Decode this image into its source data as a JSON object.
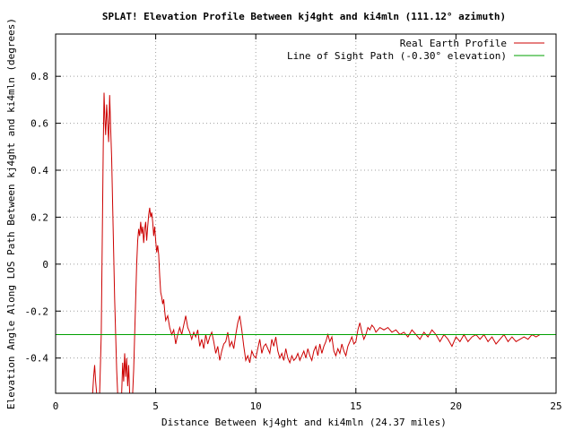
{
  "chart_data": {
    "type": "line",
    "title": "SPLAT! Elevation Profile Between kj4ght and ki4mln (111.12° azimuth)",
    "xlabel": "Distance Between kj4ght and ki4mln (24.37 miles)",
    "ylabel": "Elevation Angle Along LOS Path Between kj4ght and ki4mln (degrees)",
    "xlim": [
      0,
      25
    ],
    "ylim": [
      -0.55,
      0.98
    ],
    "x_ticks": [
      0,
      5,
      10,
      15,
      20,
      25
    ],
    "x_tick_labels": [
      "0",
      "5",
      "10",
      "15",
      "20",
      "25"
    ],
    "y_ticks": [
      -0.4,
      -0.2,
      0,
      0.2,
      0.4,
      0.6,
      0.8
    ],
    "y_tick_labels": [
      "-0.4",
      "-0.2",
      "0",
      "0.2",
      "0.4",
      "0.6",
      "0.8"
    ],
    "grid": true,
    "legend_position": "top-right",
    "series": [
      {
        "name": "Real Earth Profile",
        "color": "#cc0000",
        "points": [
          [
            1.85,
            -0.55
          ],
          [
            1.9,
            -0.48
          ],
          [
            1.95,
            -0.43
          ],
          [
            2.0,
            -0.5
          ],
          [
            2.05,
            -0.55
          ],
          [
            2.2,
            -0.55
          ],
          [
            2.28,
            -0.3
          ],
          [
            2.33,
            0.1
          ],
          [
            2.38,
            0.5
          ],
          [
            2.42,
            0.73
          ],
          [
            2.46,
            0.62
          ],
          [
            2.5,
            0.55
          ],
          [
            2.55,
            0.68
          ],
          [
            2.6,
            0.6
          ],
          [
            2.65,
            0.52
          ],
          [
            2.7,
            0.72
          ],
          [
            2.75,
            0.58
          ],
          [
            2.8,
            0.45
          ],
          [
            2.85,
            0.25
          ],
          [
            2.9,
            0.05
          ],
          [
            2.95,
            -0.15
          ],
          [
            3.0,
            -0.3
          ],
          [
            3.05,
            -0.45
          ],
          [
            3.1,
            -0.55
          ],
          [
            3.3,
            -0.55
          ],
          [
            3.35,
            -0.42
          ],
          [
            3.4,
            -0.5
          ],
          [
            3.45,
            -0.38
          ],
          [
            3.5,
            -0.48
          ],
          [
            3.55,
            -0.4
          ],
          [
            3.6,
            -0.52
          ],
          [
            3.65,
            -0.43
          ],
          [
            3.7,
            -0.55
          ],
          [
            3.85,
            -0.55
          ],
          [
            3.9,
            -0.45
          ],
          [
            3.95,
            -0.3
          ],
          [
            4.0,
            -0.15
          ],
          [
            4.05,
            0.0
          ],
          [
            4.1,
            0.1
          ],
          [
            4.15,
            0.15
          ],
          [
            4.2,
            0.12
          ],
          [
            4.25,
            0.18
          ],
          [
            4.3,
            0.13
          ],
          [
            4.35,
            0.16
          ],
          [
            4.4,
            0.09
          ],
          [
            4.45,
            0.15
          ],
          [
            4.5,
            0.18
          ],
          [
            4.55,
            0.1
          ],
          [
            4.6,
            0.16
          ],
          [
            4.65,
            0.21
          ],
          [
            4.7,
            0.24
          ],
          [
            4.75,
            0.2
          ],
          [
            4.8,
            0.22
          ],
          [
            4.85,
            0.18
          ],
          [
            4.9,
            0.12
          ],
          [
            4.95,
            0.16
          ],
          [
            5.0,
            0.1
          ],
          [
            5.05,
            0.05
          ],
          [
            5.1,
            0.08
          ],
          [
            5.15,
            0.04
          ],
          [
            5.2,
            -0.05
          ],
          [
            5.25,
            -0.12
          ],
          [
            5.3,
            -0.14
          ],
          [
            5.35,
            -0.17
          ],
          [
            5.4,
            -0.15
          ],
          [
            5.45,
            -0.2
          ],
          [
            5.5,
            -0.24
          ],
          [
            5.6,
            -0.22
          ],
          [
            5.7,
            -0.27
          ],
          [
            5.8,
            -0.3
          ],
          [
            5.9,
            -0.28
          ],
          [
            6.0,
            -0.34
          ],
          [
            6.1,
            -0.3
          ],
          [
            6.2,
            -0.27
          ],
          [
            6.3,
            -0.3
          ],
          [
            6.4,
            -0.26
          ],
          [
            6.5,
            -0.22
          ],
          [
            6.6,
            -0.27
          ],
          [
            6.7,
            -0.29
          ],
          [
            6.8,
            -0.32
          ],
          [
            6.9,
            -0.29
          ],
          [
            7.0,
            -0.31
          ],
          [
            7.1,
            -0.28
          ],
          [
            7.2,
            -0.35
          ],
          [
            7.3,
            -0.32
          ],
          [
            7.4,
            -0.36
          ],
          [
            7.5,
            -0.3
          ],
          [
            7.6,
            -0.34
          ],
          [
            7.7,
            -0.31
          ],
          [
            7.8,
            -0.29
          ],
          [
            7.9,
            -0.33
          ],
          [
            8.0,
            -0.38
          ],
          [
            8.1,
            -0.35
          ],
          [
            8.2,
            -0.41
          ],
          [
            8.3,
            -0.37
          ],
          [
            8.4,
            -0.34
          ],
          [
            8.5,
            -0.33
          ],
          [
            8.6,
            -0.29
          ],
          [
            8.7,
            -0.35
          ],
          [
            8.8,
            -0.33
          ],
          [
            8.9,
            -0.36
          ],
          [
            9.0,
            -0.3
          ],
          [
            9.1,
            -0.25
          ],
          [
            9.2,
            -0.22
          ],
          [
            9.3,
            -0.28
          ],
          [
            9.4,
            -0.35
          ],
          [
            9.5,
            -0.41
          ],
          [
            9.6,
            -0.39
          ],
          [
            9.7,
            -0.42
          ],
          [
            9.8,
            -0.37
          ],
          [
            9.9,
            -0.39
          ],
          [
            10.0,
            -0.4
          ],
          [
            10.1,
            -0.36
          ],
          [
            10.2,
            -0.32
          ],
          [
            10.3,
            -0.38
          ],
          [
            10.4,
            -0.35
          ],
          [
            10.5,
            -0.34
          ],
          [
            10.6,
            -0.36
          ],
          [
            10.7,
            -0.38
          ],
          [
            10.8,
            -0.32
          ],
          [
            10.9,
            -0.35
          ],
          [
            11.0,
            -0.31
          ],
          [
            11.1,
            -0.37
          ],
          [
            11.2,
            -0.4
          ],
          [
            11.3,
            -0.38
          ],
          [
            11.4,
            -0.41
          ],
          [
            11.5,
            -0.36
          ],
          [
            11.6,
            -0.4
          ],
          [
            11.7,
            -0.42
          ],
          [
            11.8,
            -0.39
          ],
          [
            11.9,
            -0.41
          ],
          [
            12.0,
            -0.4
          ],
          [
            12.1,
            -0.38
          ],
          [
            12.2,
            -0.41
          ],
          [
            12.3,
            -0.39
          ],
          [
            12.4,
            -0.37
          ],
          [
            12.5,
            -0.4
          ],
          [
            12.6,
            -0.36
          ],
          [
            12.7,
            -0.39
          ],
          [
            12.8,
            -0.41
          ],
          [
            12.9,
            -0.37
          ],
          [
            13.0,
            -0.35
          ],
          [
            13.1,
            -0.39
          ],
          [
            13.2,
            -0.34
          ],
          [
            13.3,
            -0.38
          ],
          [
            13.4,
            -0.35
          ],
          [
            13.5,
            -0.33
          ],
          [
            13.6,
            -0.3
          ],
          [
            13.7,
            -0.33
          ],
          [
            13.8,
            -0.31
          ],
          [
            13.9,
            -0.37
          ],
          [
            14.0,
            -0.39
          ],
          [
            14.1,
            -0.36
          ],
          [
            14.2,
            -0.38
          ],
          [
            14.3,
            -0.34
          ],
          [
            14.4,
            -0.37
          ],
          [
            14.5,
            -0.39
          ],
          [
            14.6,
            -0.35
          ],
          [
            14.7,
            -0.33
          ],
          [
            14.8,
            -0.31
          ],
          [
            14.9,
            -0.34
          ],
          [
            15.0,
            -0.33
          ],
          [
            15.1,
            -0.28
          ],
          [
            15.2,
            -0.25
          ],
          [
            15.3,
            -0.29
          ],
          [
            15.4,
            -0.32
          ],
          [
            15.5,
            -0.3
          ],
          [
            15.6,
            -0.27
          ],
          [
            15.7,
            -0.28
          ],
          [
            15.8,
            -0.26
          ],
          [
            15.9,
            -0.27
          ],
          [
            16.0,
            -0.29
          ],
          [
            16.2,
            -0.27
          ],
          [
            16.4,
            -0.28
          ],
          [
            16.6,
            -0.27
          ],
          [
            16.8,
            -0.29
          ],
          [
            17.0,
            -0.28
          ],
          [
            17.2,
            -0.3
          ],
          [
            17.4,
            -0.29
          ],
          [
            17.6,
            -0.31
          ],
          [
            17.8,
            -0.28
          ],
          [
            18.0,
            -0.3
          ],
          [
            18.2,
            -0.32
          ],
          [
            18.4,
            -0.29
          ],
          [
            18.6,
            -0.31
          ],
          [
            18.8,
            -0.28
          ],
          [
            19.0,
            -0.3
          ],
          [
            19.2,
            -0.33
          ],
          [
            19.4,
            -0.3
          ],
          [
            19.6,
            -0.32
          ],
          [
            19.8,
            -0.35
          ],
          [
            20.0,
            -0.31
          ],
          [
            20.2,
            -0.33
          ],
          [
            20.4,
            -0.3
          ],
          [
            20.6,
            -0.33
          ],
          [
            20.8,
            -0.31
          ],
          [
            21.0,
            -0.3
          ],
          [
            21.2,
            -0.32
          ],
          [
            21.4,
            -0.3
          ],
          [
            21.6,
            -0.33
          ],
          [
            21.8,
            -0.31
          ],
          [
            22.0,
            -0.34
          ],
          [
            22.2,
            -0.32
          ],
          [
            22.4,
            -0.3
          ],
          [
            22.6,
            -0.33
          ],
          [
            22.8,
            -0.31
          ],
          [
            23.0,
            -0.33
          ],
          [
            23.2,
            -0.32
          ],
          [
            23.4,
            -0.31
          ],
          [
            23.6,
            -0.32
          ],
          [
            23.8,
            -0.3
          ],
          [
            24.0,
            -0.31
          ],
          [
            24.2,
            -0.3
          ],
          [
            24.37,
            -0.3
          ]
        ]
      },
      {
        "name": "Line of Sight Path (-0.30° elevation)",
        "color": "#00a000",
        "points": [
          [
            0,
            -0.3
          ],
          [
            25,
            -0.3
          ]
        ]
      }
    ]
  }
}
